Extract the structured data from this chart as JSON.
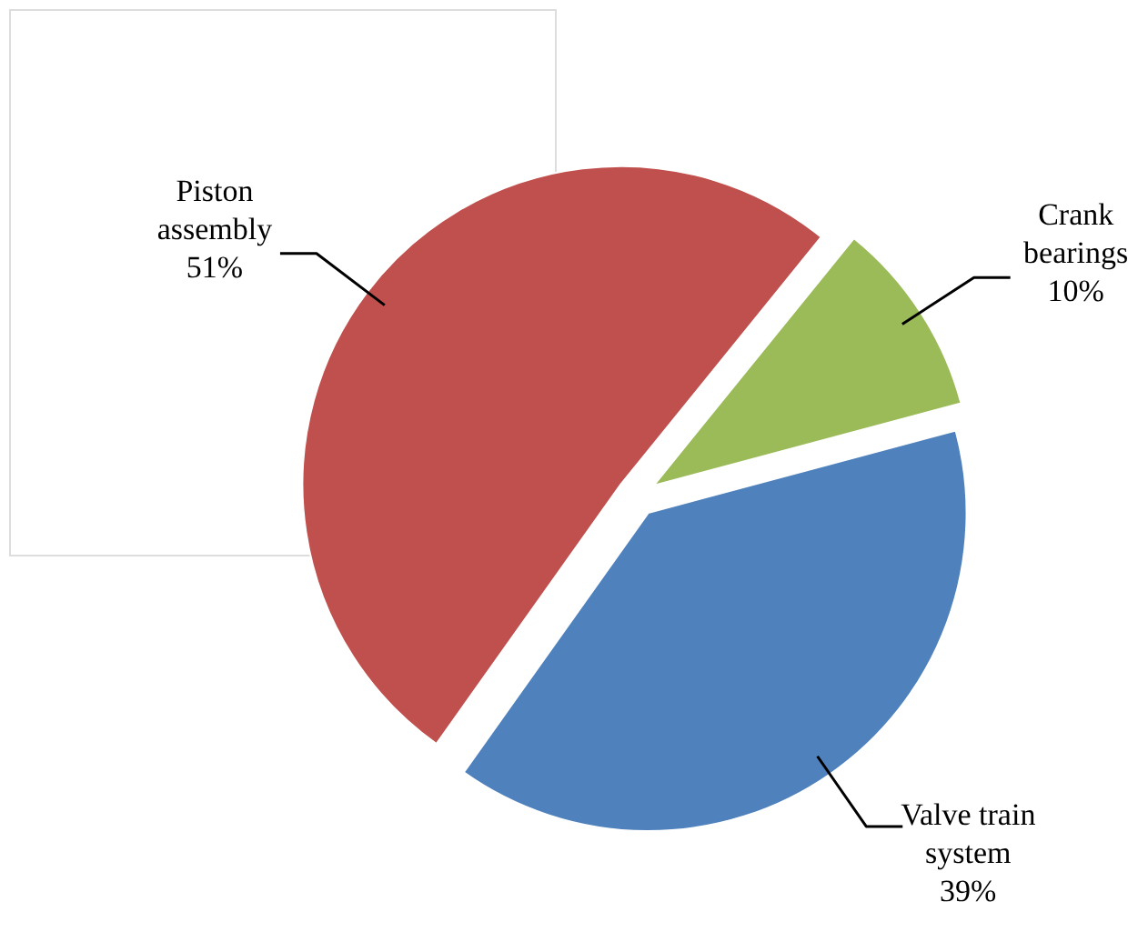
{
  "chart_data": {
    "type": "pie",
    "categories": [
      "Crank bearings",
      "Valve train system",
      "Piston assembly"
    ],
    "values": [
      10,
      39,
      51
    ],
    "value_labels": [
      "10%",
      "39%",
      "51%"
    ],
    "colors": [
      "#9bbb59",
      "#4f81bd",
      "#c0504d"
    ]
  }
}
